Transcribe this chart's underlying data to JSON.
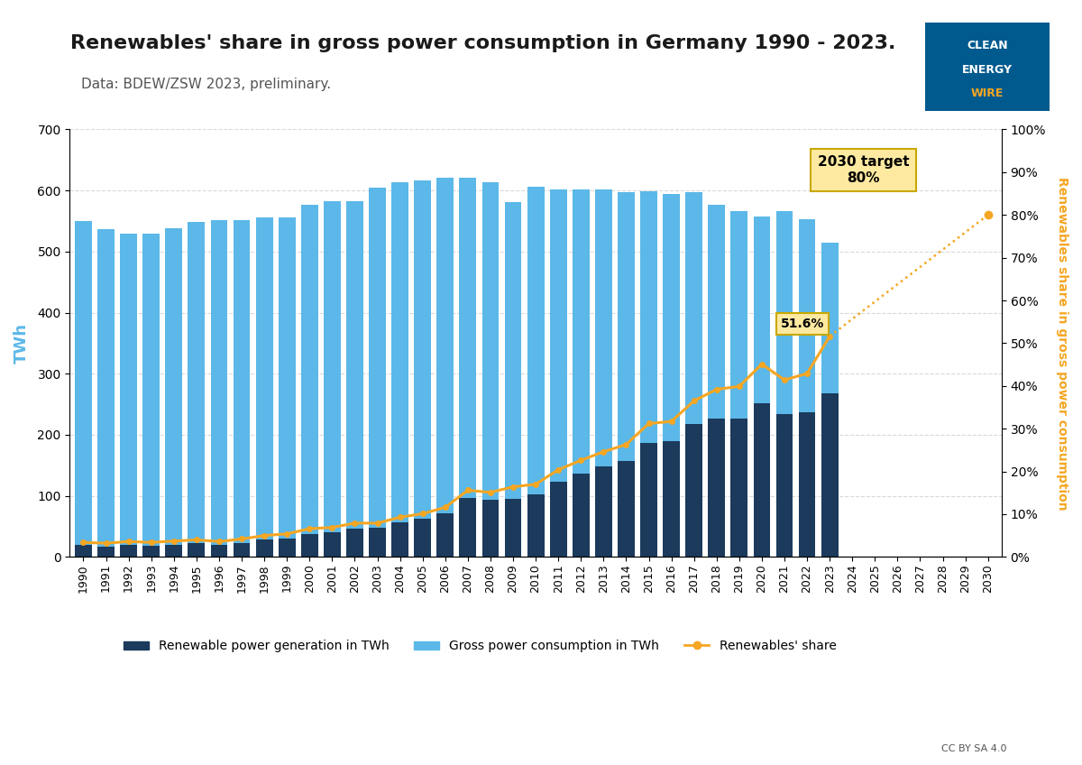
{
  "years_all": [
    1990,
    1991,
    1992,
    1993,
    1994,
    1995,
    1996,
    1997,
    1998,
    1999,
    2000,
    2001,
    2002,
    2003,
    2004,
    2005,
    2006,
    2007,
    2008,
    2009,
    2010,
    2011,
    2012,
    2013,
    2014,
    2015,
    2016,
    2017,
    2018,
    2019,
    2020,
    2021,
    2022,
    2023,
    2024,
    2025,
    2026,
    2027,
    2028,
    2029,
    2030
  ],
  "years_data": [
    1990,
    1991,
    1992,
    1993,
    1994,
    1995,
    1996,
    1997,
    1998,
    1999,
    2000,
    2001,
    2002,
    2003,
    2004,
    2005,
    2006,
    2007,
    2008,
    2009,
    2010,
    2011,
    2012,
    2013,
    2014,
    2015,
    2016,
    2017,
    2018,
    2019,
    2020,
    2021,
    2022,
    2023
  ],
  "gross_consumption": [
    550,
    537,
    530,
    530,
    538,
    548,
    551,
    551,
    556,
    556,
    577,
    582,
    583,
    605,
    613,
    616,
    621,
    621,
    614,
    581,
    606,
    602,
    601,
    602,
    597,
    599,
    595,
    597,
    577,
    566,
    557,
    566,
    553,
    515
  ],
  "renewables_twh": [
    19,
    17,
    19,
    18,
    20,
    22,
    20,
    23,
    28,
    30,
    38,
    40,
    46,
    48,
    57,
    62,
    72,
    97,
    93,
    95,
    103,
    123,
    136,
    148,
    157,
    187,
    189,
    218,
    226,
    226,
    251,
    234,
    237,
    268
  ],
  "renewables_share": [
    3.4,
    3.2,
    3.6,
    3.4,
    3.7,
    4.0,
    3.6,
    4.2,
    5.0,
    5.4,
    6.6,
    6.9,
    7.9,
    7.9,
    9.3,
    10.1,
    11.6,
    15.6,
    15.1,
    16.4,
    17.0,
    20.4,
    22.6,
    24.6,
    26.3,
    31.2,
    31.7,
    36.5,
    39.2,
    39.9,
    45.1,
    41.4,
    42.9,
    51.6
  ],
  "target_year": 2030,
  "target_share": 80.0,
  "target_label": "2030 target\n80%",
  "annotation_value": "51.6%",
  "title": "Renewables' share in gross power consumption in Germany 1990 - 2023.",
  "subtitle": "Data: BDEW/ZSW 2023, preliminary.",
  "ylabel_left": "TWh",
  "ylabel_right": "Renewables share in gross power consumption",
  "legend_items": [
    "Renewable power generation in TWh",
    "Gross power consumption in TWh",
    "Renewables' share"
  ],
  "bar_color_dark": "#1b3a5c",
  "bar_color_light": "#5bb8e8",
  "line_color": "#f5a623",
  "bg_color": "#ffffff",
  "title_color": "#1a1a1a",
  "subtitle_color": "#555555",
  "ylabel_color_left": "#5bb8e8",
  "ylabel_color_right": "#f5a623",
  "yticks_left": [
    0,
    100,
    200,
    300,
    400,
    500,
    600,
    700
  ],
  "yticks_right_vals": [
    0,
    10,
    20,
    30,
    40,
    50,
    60,
    70,
    80,
    90,
    100
  ],
  "logo_bg": "#005a8e",
  "logo_wire_color": "#f5a623",
  "annotation_box_face": "#fde9a0",
  "annotation_box_edge": "#c8a800"
}
